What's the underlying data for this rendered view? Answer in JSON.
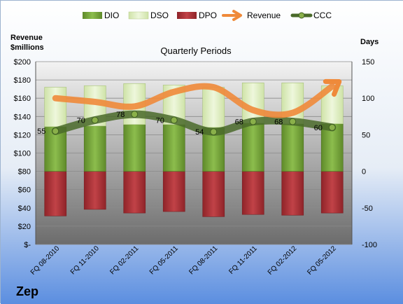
{
  "company": "Zep",
  "chart_data": {
    "type": "bar",
    "title": "Quarterly Periods",
    "left_axis_label_line1": "Revenue",
    "left_axis_label_line2": "$millions",
    "right_axis_label": "Days",
    "categories": [
      "FQ 08-2010",
      "FQ 11-2010",
      "FQ 02-2011",
      "FQ 05-2011",
      "FQ 08-2011",
      "FQ 11-2011",
      "FQ 02-2012",
      "FQ 05-2012"
    ],
    "left_ylim": [
      0,
      200
    ],
    "left_ticks": [
      "$-",
      "$20",
      "$40",
      "$60",
      "$80",
      "$100",
      "$120",
      "$140",
      "$160",
      "$180",
      "$200"
    ],
    "right_ylim": [
      -100,
      150
    ],
    "right_ticks": [
      "-100",
      "-50",
      "0",
      "50",
      "100",
      "150"
    ],
    "series": [
      {
        "name": "DIO",
        "axis": "right",
        "values": [
          61,
          62,
          64,
          64,
          60,
          66,
          65,
          65
        ]
      },
      {
        "name": "DSO",
        "axis": "right",
        "values": [
          54,
          55,
          56,
          54,
          55,
          55,
          56,
          52
        ]
      },
      {
        "name": "DPO",
        "axis": "right",
        "values": [
          -61,
          -52,
          -57,
          -55,
          -62,
          -59,
          -60,
          -57
        ]
      },
      {
        "name": "Revenue",
        "axis": "left",
        "values": [
          160,
          156,
          151,
          167,
          172,
          147,
          144,
          173
        ]
      },
      {
        "name": "CCC",
        "axis": "right",
        "values": [
          55,
          70,
          78,
          70,
          54,
          68,
          68,
          60
        ]
      }
    ],
    "ccc_labels": [
      "55",
      "70",
      "78",
      "70",
      "54",
      "68",
      "68",
      "60"
    ],
    "legend": [
      "DIO",
      "DSO",
      "DPO",
      "Revenue",
      "CCC"
    ],
    "legend_position": "top",
    "colors": {
      "DIO": "#77a43a",
      "DSO": "#dfeec3",
      "DPO": "#b0353a",
      "Revenue": "#ef8a3a",
      "CCC": "#4a6a2a"
    },
    "grid": true
  }
}
